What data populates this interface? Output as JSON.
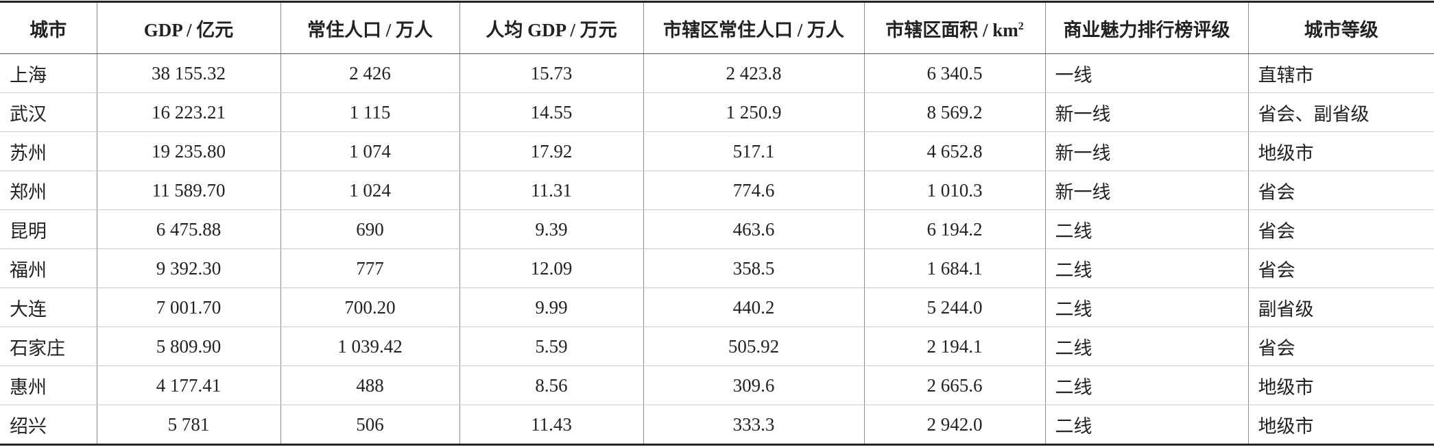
{
  "table": {
    "header": [
      "城市",
      "GDP / 亿元",
      "常住人口 / 万人",
      "人均 GDP / 万元",
      "市辖区常住人口 / 万人",
      {
        "text": "市辖区面积 / km",
        "sup": "2"
      },
      "商业魅力排行榜评级",
      "城市等级"
    ],
    "rows": [
      [
        "上海",
        "38 155.32",
        "2 426",
        "15.73",
        "2 423.8",
        "6 340.5",
        "一线",
        "直辖市"
      ],
      [
        "武汉",
        "16 223.21",
        "1 115",
        "14.55",
        "1 250.9",
        "8 569.2",
        "新一线",
        "省会、副省级"
      ],
      [
        "苏州",
        "19 235.80",
        "1 074",
        "17.92",
        "517.1",
        "4 652.8",
        "新一线",
        "地级市"
      ],
      [
        "郑州",
        "11 589.70",
        "1 024",
        "11.31",
        "774.6",
        "1 010.3",
        "新一线",
        "省会"
      ],
      [
        "昆明",
        "6 475.88",
        "690",
        "9.39",
        "463.6",
        "6 194.2",
        "二线",
        "省会"
      ],
      [
        "福州",
        "9 392.30",
        "777",
        "12.09",
        "358.5",
        "1 684.1",
        "二线",
        "省会"
      ],
      [
        "大连",
        "7 001.70",
        "700.20",
        "9.99",
        "440.2",
        "5 244.0",
        "二线",
        "副省级"
      ],
      [
        "石家庄",
        "5 809.90",
        "1 039.42",
        "5.59",
        "505.92",
        "2 194.1",
        "二线",
        "省会"
      ],
      [
        "惠州",
        "4 177.41",
        "488",
        "8.56",
        "309.6",
        "2 665.6",
        "二线",
        "地级市"
      ],
      [
        "绍兴",
        "5 781",
        "506",
        "11.43",
        "333.3",
        "2 942.0",
        "二线",
        "地级市"
      ]
    ]
  }
}
